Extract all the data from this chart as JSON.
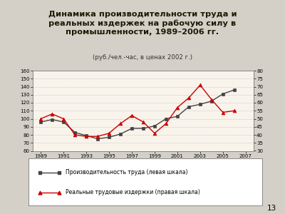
{
  "title_line1": "Динамика производительности труда и",
  "title_line2": "реальных издержек на рабочую силу в",
  "title_line3": "промышленности, 1989–2006 гг.",
  "subtitle": "(руб./чел.-час, в ценах 2002 г.)",
  "years": [
    1989,
    1990,
    1991,
    1992,
    1993,
    1994,
    1995,
    1996,
    1997,
    1998,
    1999,
    2000,
    2001,
    2002,
    2003,
    2004,
    2005,
    2006
  ],
  "productivity": [
    96,
    99,
    96,
    83,
    79,
    75,
    77,
    81,
    88,
    88,
    91,
    100,
    103,
    115,
    118,
    122,
    131,
    136
  ],
  "labor_costs": [
    50,
    53,
    50,
    40,
    39,
    39,
    41,
    47,
    52,
    48,
    41,
    47,
    57,
    63,
    71,
    62,
    54,
    55
  ],
  "prod_color": "#444444",
  "cost_color": "#cc0000",
  "prod_label": "Производительность труда (левая шкала)",
  "cost_label": "Реальные трудовые издержки (правая шкала)",
  "ylim_left": [
    60,
    160
  ],
  "ylim_right": [
    30,
    80
  ],
  "yticks_left": [
    60,
    70,
    80,
    90,
    100,
    110,
    120,
    130,
    140,
    150,
    160
  ],
  "yticks_right": [
    30,
    35,
    40,
    45,
    50,
    55,
    60,
    65,
    70,
    75,
    80
  ],
  "xticks": [
    1989,
    1991,
    1993,
    1995,
    1997,
    1999,
    2001,
    2003,
    2005,
    2007
  ],
  "slide_bg": "#d4d0c8",
  "plot_bg": "#f8f4ec",
  "legend_bg": "#ffffff",
  "title_color": "#1a1a00",
  "subtitle_color": "#333333",
  "page_number": "13",
  "grid_color": "#bbbbbb"
}
